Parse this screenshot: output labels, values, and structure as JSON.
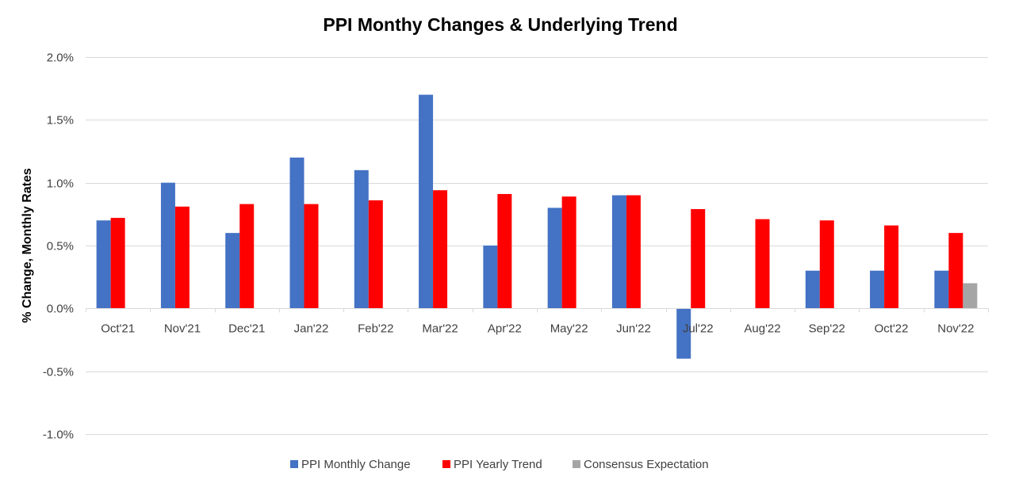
{
  "chart_data": {
    "type": "bar",
    "title": "PPI Monthy Changes & Underlying Trend",
    "xlabel": "",
    "ylabel": "% Change, Monthly Rates",
    "ylim": [
      -1.0,
      2.0
    ],
    "yticks": [
      2.0,
      1.5,
      1.0,
      0.5,
      0.0,
      -0.5,
      -1.0
    ],
    "ytick_labels": [
      "2.0%",
      "1.5%",
      "1.0%",
      "0.5%",
      "0.0%",
      "-0.5%",
      "-1.0%"
    ],
    "grid": true,
    "legend_position": "bottom",
    "categories": [
      "Oct'21",
      "Nov'21",
      "Dec'21",
      "Jan'22",
      "Feb'22",
      "Mar'22",
      "Apr'22",
      "May'22",
      "Jun'22",
      "Jul'22",
      "Aug'22",
      "Sep'22",
      "Oct'22",
      "Nov'22"
    ],
    "series": [
      {
        "name": "PPI Monthly Change",
        "color": "#4472C4",
        "values": [
          0.7,
          1.0,
          0.6,
          1.2,
          1.1,
          1.7,
          0.5,
          0.8,
          0.9,
          -0.4,
          0.0,
          0.3,
          0.3,
          0.3
        ]
      },
      {
        "name": "PPI Yearly Trend",
        "color": "#FF0000",
        "values": [
          0.72,
          0.81,
          0.83,
          0.83,
          0.86,
          0.94,
          0.91,
          0.89,
          0.9,
          0.79,
          0.71,
          0.7,
          0.66,
          0.6
        ]
      },
      {
        "name": "Consensus Expectation",
        "color": "#A5A5A5",
        "values": [
          null,
          null,
          null,
          null,
          null,
          null,
          null,
          null,
          null,
          null,
          null,
          null,
          null,
          0.2
        ]
      }
    ]
  }
}
